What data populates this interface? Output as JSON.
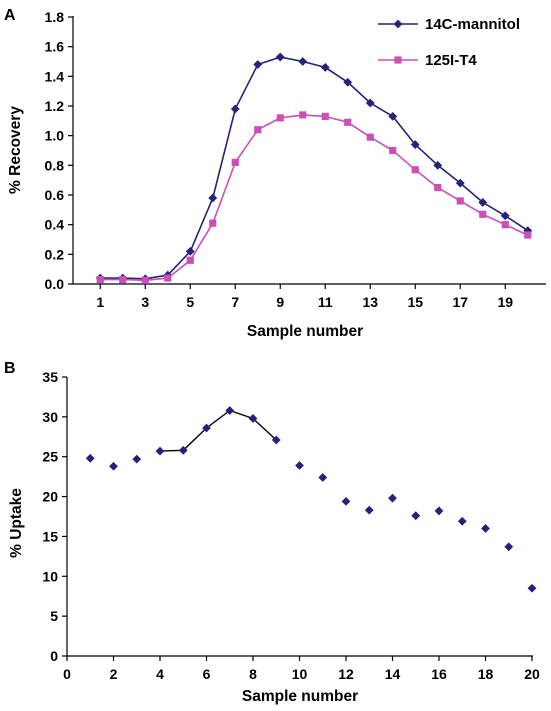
{
  "chart_data": [
    {
      "panel_label": "A",
      "type": "line",
      "title": "",
      "xlabel": "Sample number",
      "ylabel": "% Recovery",
      "x": [
        1,
        2,
        3,
        4,
        5,
        6,
        7,
        8,
        9,
        10,
        11,
        12,
        13,
        14,
        15,
        16,
        17,
        18,
        19,
        20
      ],
      "xlim": [
        0.5,
        20.5
      ],
      "ylim": [
        0,
        1.8
      ],
      "x_ticks": [
        1,
        3,
        5,
        7,
        9,
        11,
        13,
        15,
        17,
        19
      ],
      "x_tick_labels": [
        "1",
        "3",
        "5",
        "7",
        "9",
        "11",
        "13",
        "15",
        "17",
        "19"
      ],
      "y_ticks": [
        0,
        0.2,
        0.4,
        0.6,
        0.8,
        1.0,
        1.2,
        1.4,
        1.6,
        1.8
      ],
      "y_tick_labels": [
        "0.0",
        "0.2",
        "0.4",
        "0.6",
        "0.8",
        "1.0",
        "1.2",
        "1.4",
        "1.6",
        "1.8"
      ],
      "grid": false,
      "legend_position": "top-right",
      "series": [
        {
          "name": "14C-mannitol",
          "color": "#23237a",
          "marker": "diamond",
          "values": [
            0.04,
            0.04,
            0.035,
            0.06,
            0.22,
            0.58,
            1.18,
            1.48,
            1.53,
            1.5,
            1.46,
            1.36,
            1.22,
            1.13,
            0.94,
            0.8,
            0.68,
            0.55,
            0.46,
            0.36
          ]
        },
        {
          "name": "125I-T4",
          "color": "#cc4fb5",
          "marker": "square",
          "values": [
            0.03,
            0.03,
            0.025,
            0.04,
            0.16,
            0.41,
            0.82,
            1.04,
            1.12,
            1.14,
            1.13,
            1.09,
            0.99,
            0.9,
            0.77,
            0.65,
            0.56,
            0.47,
            0.4,
            0.33
          ]
        }
      ]
    },
    {
      "panel_label": "B",
      "type": "scatter",
      "title": "",
      "xlabel": "Sample number",
      "ylabel": "% Uptake",
      "xlim": [
        0,
        20
      ],
      "ylim": [
        0,
        35
      ],
      "x_ticks": [
        0,
        2,
        4,
        6,
        8,
        10,
        12,
        14,
        16,
        18,
        20
      ],
      "x_tick_labels": [
        "0",
        "2",
        "4",
        "6",
        "8",
        "10",
        "12",
        "14",
        "16",
        "18",
        "20"
      ],
      "y_ticks": [
        0,
        5,
        10,
        15,
        20,
        25,
        30,
        35
      ],
      "y_tick_labels": [
        "0",
        "5",
        "10",
        "15",
        "20",
        "25",
        "30",
        "35"
      ],
      "grid": false,
      "series": [
        {
          "color": "#23237a",
          "marker": "diamond",
          "x": [
            1,
            2,
            3,
            4,
            5,
            6,
            7,
            8,
            9,
            10,
            11,
            12,
            13,
            14,
            15,
            16,
            17,
            18,
            19,
            20
          ],
          "values": [
            24.8,
            23.8,
            24.7,
            25.7,
            25.8,
            28.6,
            30.8,
            29.8,
            27.1,
            23.9,
            22.4,
            19.4,
            18.3,
            19.8,
            17.6,
            18.2,
            16.9,
            16.0,
            13.7,
            8.5
          ]
        }
      ],
      "connected_range": [
        4,
        9
      ],
      "line_color": "#000000"
    }
  ]
}
